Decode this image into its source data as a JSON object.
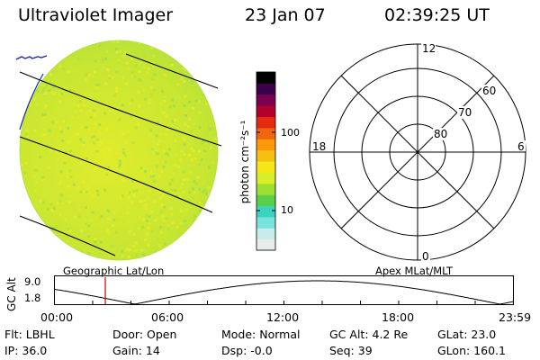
{
  "header": {
    "title": "Ultraviolet Imager",
    "date": "23 Jan 07",
    "time": "02:39:25 UT"
  },
  "colorbar": {
    "label": "photon cm⁻²s⁻¹",
    "ticks": [
      "100",
      "10"
    ],
    "colors": [
      "#e8ecec",
      "#c8ecec",
      "#78e2dc",
      "#3cd2c0",
      "#5ad04a",
      "#9ee032",
      "#d8ee28",
      "#f4e618",
      "#f6c012",
      "#ff9808",
      "#f06610",
      "#e62a10",
      "#b2002a",
      "#7a0052",
      "#3a004a",
      "#000000"
    ]
  },
  "polar": {
    "labels": {
      "top": "12",
      "bottom": "0",
      "left": "18",
      "right": "6"
    },
    "rings": [
      "80",
      "70",
      "60"
    ]
  },
  "sections": {
    "left": "Geographic Lat/Lon",
    "right": "Apex MLat/MLT"
  },
  "altitude": {
    "ylabel": "GC Alt",
    "yticks": [
      "9.0",
      "1.8"
    ],
    "xticks": [
      "00:00",
      "06:00",
      "12:00",
      "18:00",
      "23:59"
    ],
    "current_hour": 2.66,
    "marker_color": "#cc0000"
  },
  "info": {
    "flt": "Flt: LBHL",
    "door": "Door: Open",
    "mode": "Mode: Normal",
    "gcalt": "GC Alt: 4.2 Re",
    "glat": "GLat: 23.0",
    "ip": "IP: 36.0",
    "gain": "Gain: 14",
    "dsp": "Dsp:  -0.0",
    "seq": "Seq: 39",
    "glon": "GLon: 160.1"
  }
}
